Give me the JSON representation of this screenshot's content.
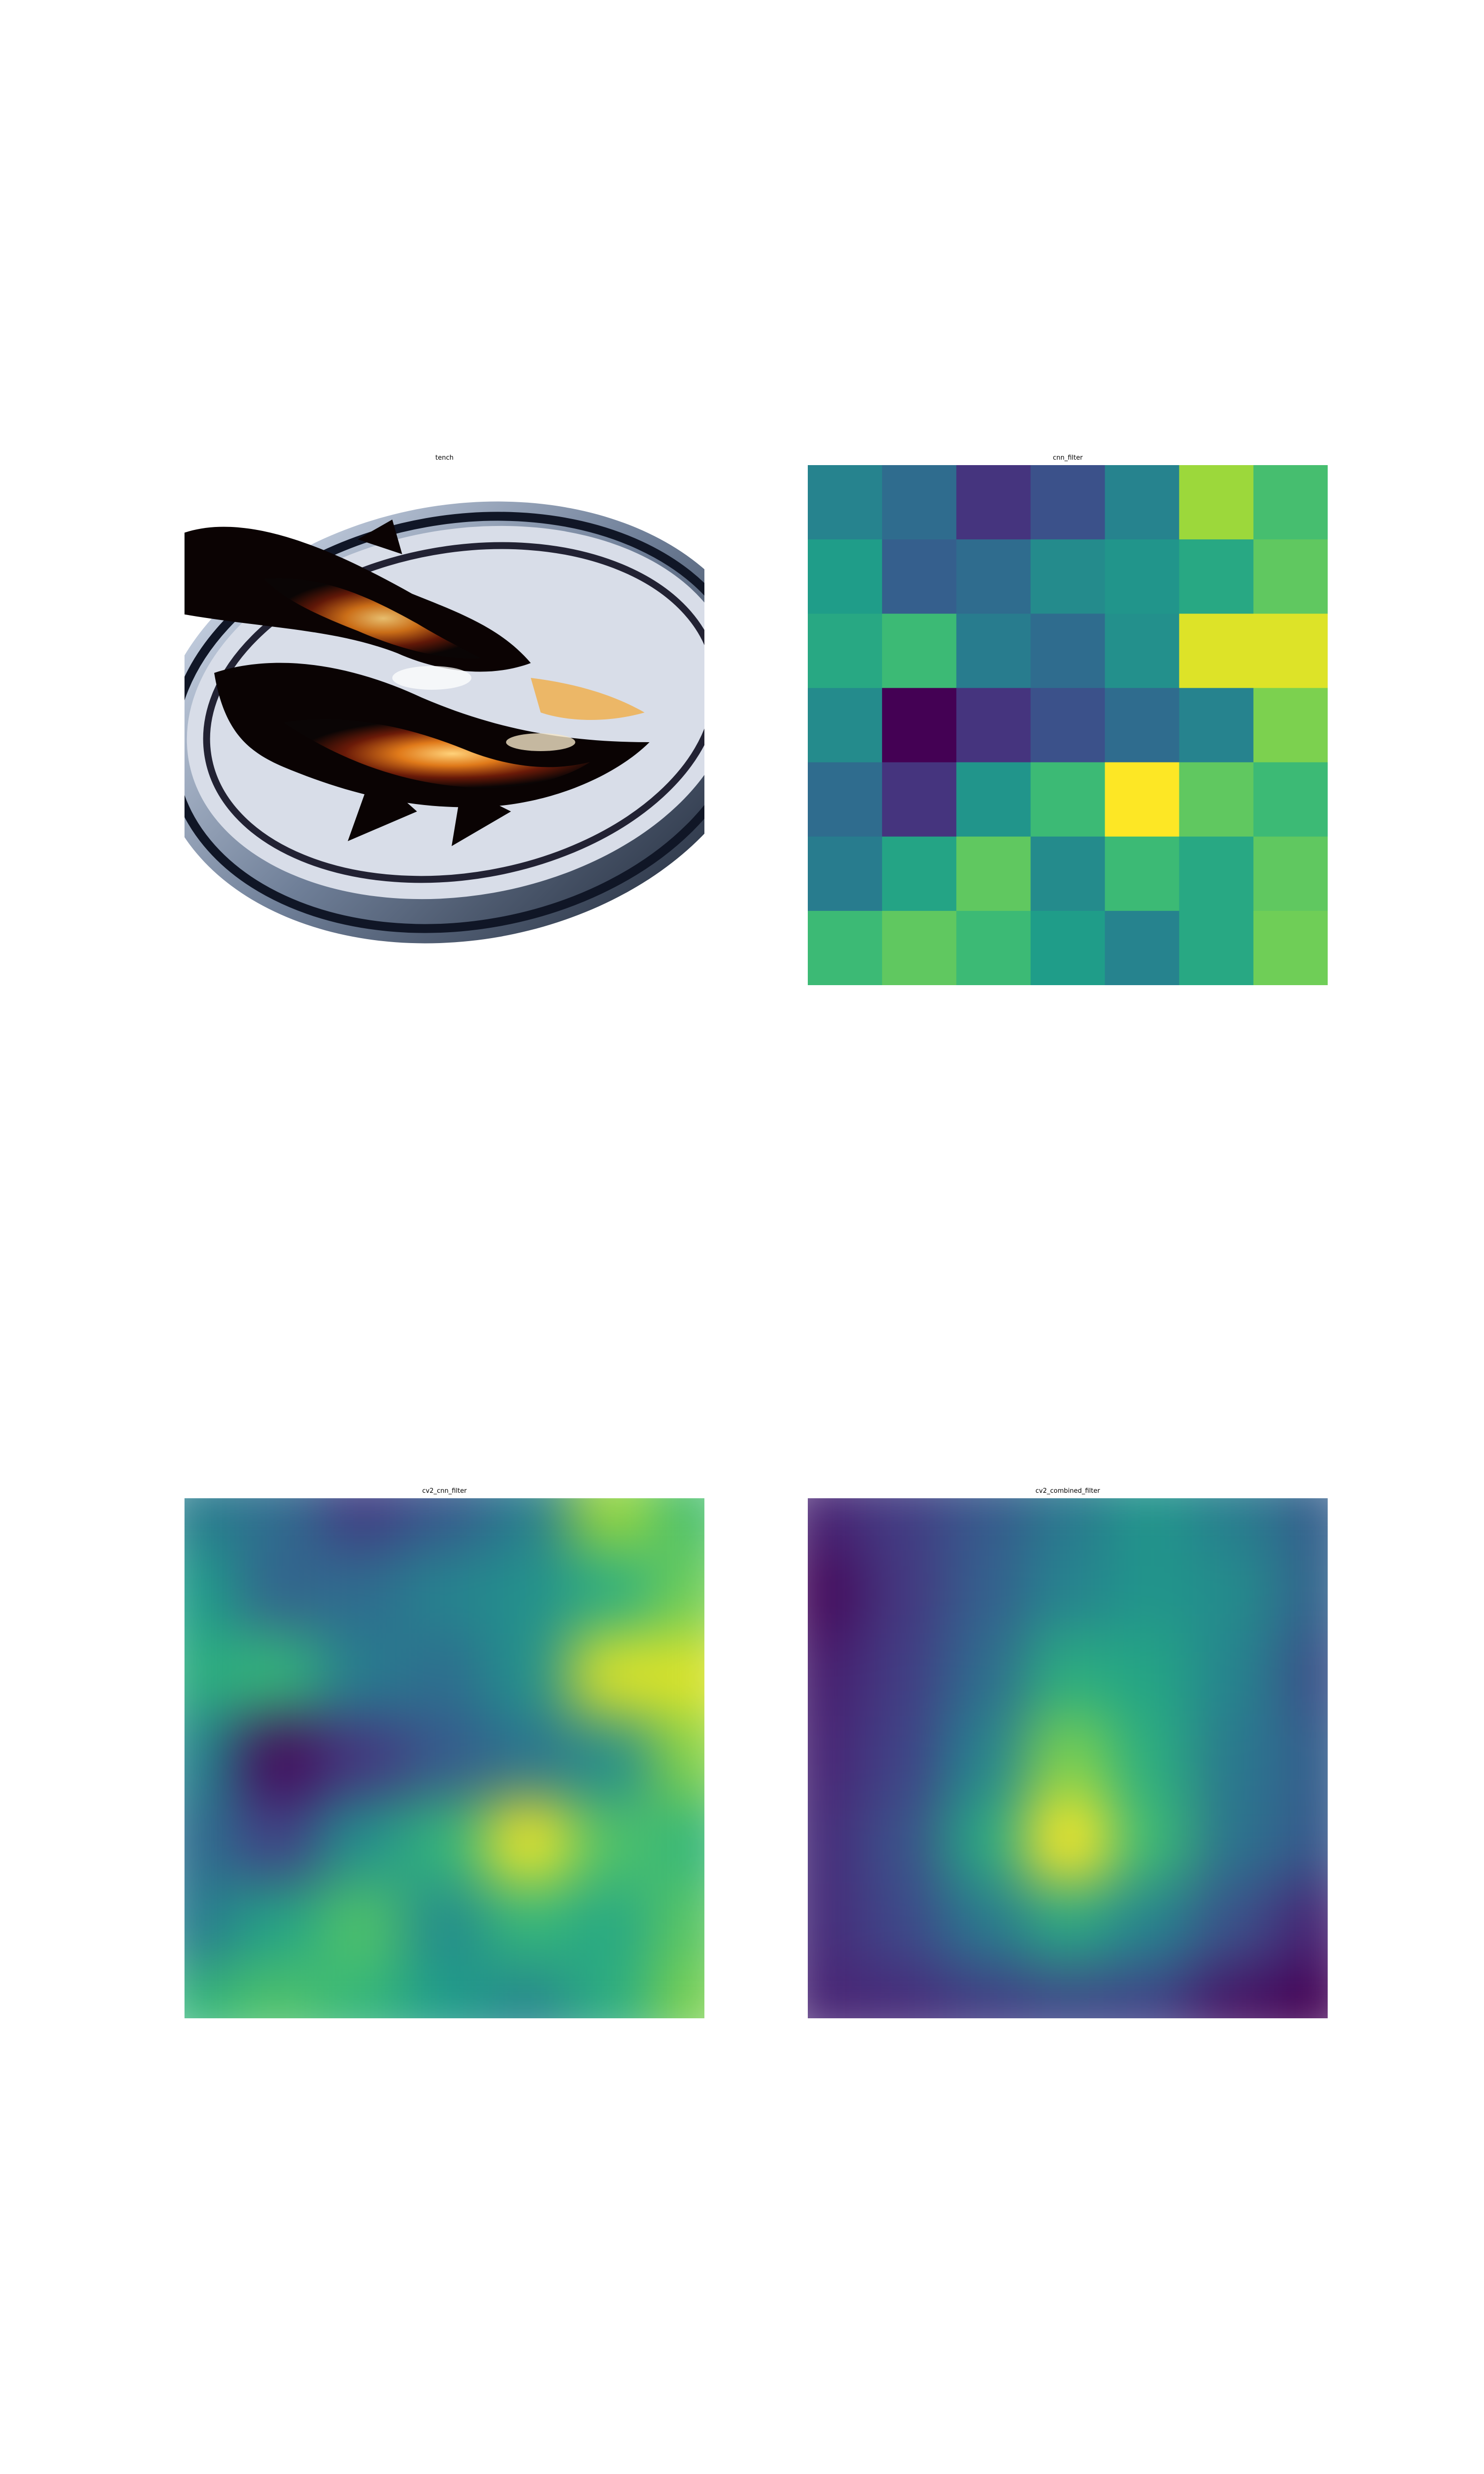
{
  "chart_data": [
    {
      "type": "image",
      "title": "tench"
    },
    {
      "type": "heatmap",
      "title": "cnn_filter",
      "colormap": "viridis",
      "rows": 7,
      "cols": 7,
      "values": [
        [
          0.45,
          0.35,
          0.15,
          0.25,
          0.45,
          0.85,
          0.7
        ],
        [
          0.55,
          0.3,
          0.35,
          0.48,
          0.52,
          0.6,
          0.75
        ],
        [
          0.6,
          0.68,
          0.42,
          0.35,
          0.5,
          0.95,
          0.95
        ],
        [
          0.48,
          0.0,
          0.15,
          0.25,
          0.35,
          0.45,
          0.8
        ],
        [
          0.35,
          0.15,
          0.52,
          0.68,
          1.0,
          0.75,
          0.68
        ],
        [
          0.42,
          0.58,
          0.75,
          0.48,
          0.68,
          0.6,
          0.75
        ],
        [
          0.68,
          0.75,
          0.68,
          0.55,
          0.45,
          0.6,
          0.78
        ]
      ]
    },
    {
      "type": "heatmap",
      "title": "cv2_cnn_filter",
      "colormap": "viridis",
      "rows": 7,
      "cols": 7,
      "values": [
        [
          0.42,
          0.35,
          0.18,
          0.28,
          0.42,
          0.85,
          0.7
        ],
        [
          0.55,
          0.32,
          0.35,
          0.45,
          0.5,
          0.62,
          0.78
        ],
        [
          0.62,
          0.66,
          0.42,
          0.36,
          0.5,
          0.95,
          0.95
        ],
        [
          0.46,
          0.02,
          0.15,
          0.28,
          0.38,
          0.48,
          0.82
        ],
        [
          0.36,
          0.2,
          0.5,
          0.66,
          0.98,
          0.72,
          0.66
        ],
        [
          0.42,
          0.58,
          0.72,
          0.48,
          0.66,
          0.6,
          0.74
        ],
        [
          0.66,
          0.72,
          0.66,
          0.55,
          0.46,
          0.62,
          0.8
        ]
      ]
    },
    {
      "type": "heatmap",
      "title": "cv2_combined_filter",
      "colormap": "viridis",
      "rows": 7,
      "cols": 7,
      "values": [
        [
          0.1,
          0.18,
          0.28,
          0.4,
          0.52,
          0.42,
          0.3
        ],
        [
          0.02,
          0.16,
          0.3,
          0.45,
          0.52,
          0.48,
          0.32
        ],
        [
          0.08,
          0.18,
          0.35,
          0.62,
          0.58,
          0.45,
          0.25
        ],
        [
          0.1,
          0.2,
          0.45,
          0.8,
          0.62,
          0.4,
          0.3
        ],
        [
          0.12,
          0.25,
          0.6,
          1.0,
          0.68,
          0.38,
          0.28
        ],
        [
          0.12,
          0.22,
          0.4,
          0.6,
          0.45,
          0.25,
          0.1
        ],
        [
          0.1,
          0.12,
          0.18,
          0.22,
          0.2,
          0.05,
          0.0
        ]
      ]
    }
  ]
}
